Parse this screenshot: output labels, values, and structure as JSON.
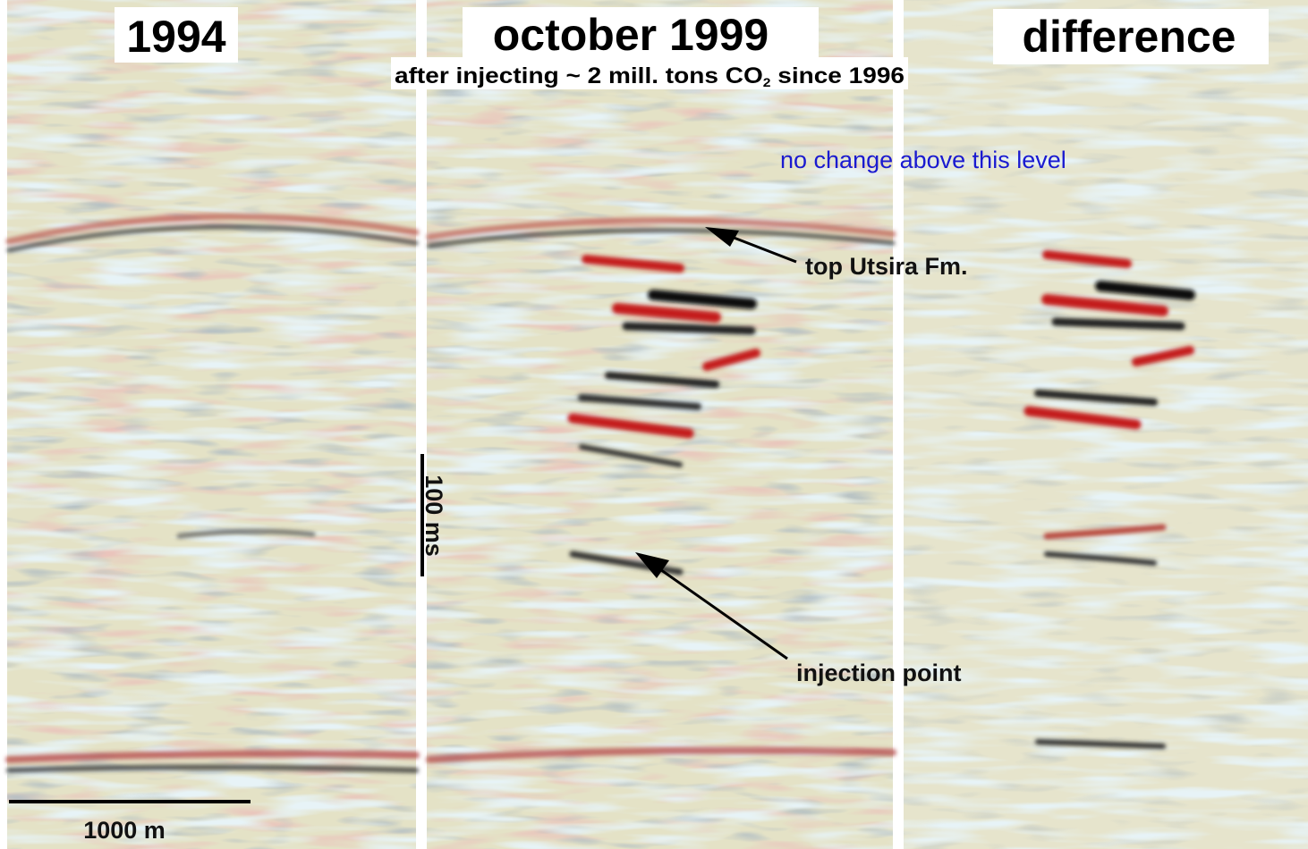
{
  "panels": [
    {
      "title": "1994"
    },
    {
      "title": "october 1999",
      "subtitle": {
        "text": "after injecting ~ 2 mill. tons CO",
        "subscript": "2",
        "tail": " since 1996"
      }
    },
    {
      "title": "difference"
    }
  ],
  "annotations": {
    "no_change": "no change above this level",
    "top": "top Utsira Fm.",
    "injection": "injection point"
  },
  "scale_bars": {
    "vertical": "100 ms",
    "horizontal": "1000 m"
  }
}
